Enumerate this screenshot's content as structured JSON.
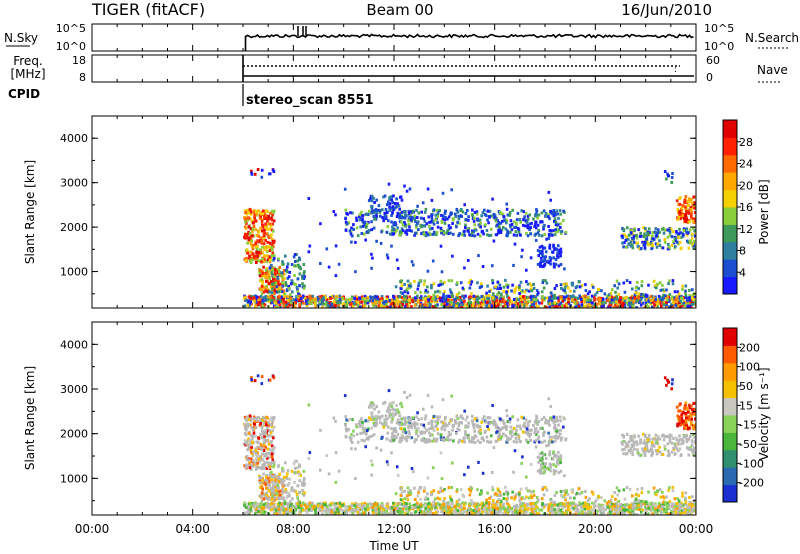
{
  "header": {
    "radar": "TIGER (fitACF)",
    "beam": "Beam 00",
    "date": "16/Jun/2010"
  },
  "top_panels": {
    "nsky_label": "N.Sky",
    "nsky_ticks": [
      "10^5",
      "10^0"
    ],
    "nsearch_label": "N.Search",
    "nsearch_ticks": [
      "10^5",
      "10^0"
    ],
    "freq_label_1": "Freq.",
    "freq_label_2": "[MHz]",
    "freq_ticks": [
      "18",
      "8"
    ],
    "nave_label": "Nave",
    "nave_ticks": [
      "60",
      "0"
    ],
    "cpid_label": "CPID",
    "cpid_value": "stereo_scan 8551"
  },
  "chart_data": [
    {
      "type": "heatmap",
      "name": "power",
      "ylabel": "Slant Range [km]",
      "yticks": [
        "4000",
        "3000",
        "2000",
        "1000"
      ],
      "ylim": [
        180,
        4500
      ],
      "xlim": [
        0,
        24
      ],
      "colorbar_label": "Power [dB]",
      "colorbar_ticks": [
        "28",
        "24",
        "20",
        "16",
        "12",
        "8",
        "4"
      ],
      "colorbar_colors": [
        "#1a1aff",
        "#1c4fd0",
        "#2f7fa0",
        "#3e9a5a",
        "#8acd3a",
        "#f5d000",
        "#ffa800",
        "#ff6a00",
        "#ff2000",
        "#e00000"
      ]
    },
    {
      "type": "heatmap",
      "name": "velocity",
      "ylabel": "Slant Range [km]",
      "yticks": [
        "4000",
        "3000",
        "2000",
        "1000"
      ],
      "ylim": [
        180,
        4500
      ],
      "xlim": [
        0,
        24
      ],
      "colorbar_label": "Velocity [m s⁻¹]",
      "colorbar_ticks": [
        "200",
        "100",
        "50",
        "15",
        "-15",
        "-50",
        "-100",
        "-200"
      ],
      "colorbar_colors": [
        "#1a30d0",
        "#2a6ab0",
        "#2f8f6f",
        "#49b53a",
        "#88d25a",
        "#c8c8c0",
        "#f5c000",
        "#ff9a00",
        "#ff5a00",
        "#e00000"
      ]
    }
  ],
  "xaxis": {
    "label": "Time UT",
    "ticks": [
      "00:00",
      "04:00",
      "08:00",
      "12:00",
      "16:00",
      "20:00",
      "00:00"
    ]
  },
  "colors": {
    "ground_scatter": "#b8b8b8"
  }
}
